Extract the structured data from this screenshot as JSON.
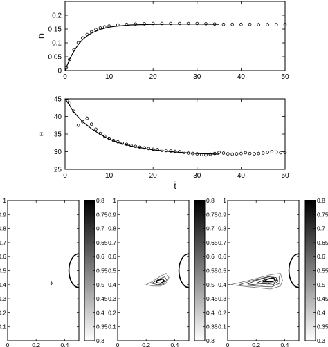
{
  "chart_data": [
    {
      "type": "line",
      "ylabel": "D",
      "xlim": [
        0,
        50
      ],
      "ylim": [
        0,
        0.25
      ],
      "xticks": [
        "0",
        "10",
        "20",
        "30",
        "40",
        "50"
      ],
      "yticks": [
        "0",
        "0.05",
        "0.1",
        "0.15",
        "0.2"
      ],
      "series": [
        {
          "style": "solid-line",
          "x": [
            0,
            1,
            2,
            3,
            4,
            5,
            6,
            8,
            10,
            12,
            15,
            20,
            25,
            30,
            35
          ],
          "y": [
            0,
            0.04,
            0.07,
            0.094,
            0.112,
            0.125,
            0.135,
            0.149,
            0.157,
            0.161,
            0.165,
            0.167,
            0.168,
            0.168,
            0.167
          ]
        },
        {
          "style": "circle-markers",
          "x": [
            0.3,
            1,
            2,
            3,
            4,
            5,
            6,
            7,
            8,
            9,
            10,
            12,
            14,
            16,
            18,
            20,
            22,
            24,
            26,
            28,
            30,
            32,
            34,
            36,
            38,
            40,
            42,
            44,
            46,
            48,
            50
          ],
          "y": [
            0.01,
            0.04,
            0.075,
            0.1,
            0.118,
            0.13,
            0.14,
            0.148,
            0.154,
            0.158,
            0.161,
            0.165,
            0.167,
            0.168,
            0.169,
            0.17,
            0.17,
            0.17,
            0.17,
            0.17,
            0.17,
            0.169,
            0.168,
            0.167,
            0.167,
            0.167,
            0.167,
            0.166,
            0.166,
            0.166,
            0.166
          ]
        }
      ]
    },
    {
      "type": "line",
      "xlabel": "t̂",
      "ylabel": "θ",
      "xlim": [
        0,
        50
      ],
      "ylim": [
        25,
        45
      ],
      "xticks": [
        "0",
        "10",
        "20",
        "30",
        "40",
        "50"
      ],
      "yticks": [
        "25",
        "30",
        "35",
        "40",
        "45"
      ],
      "series": [
        {
          "style": "solid-line",
          "x": [
            0,
            1,
            2,
            4,
            6,
            8,
            10,
            12,
            15,
            20,
            25,
            30,
            33,
            35
          ],
          "y": [
            45,
            43.2,
            41.2,
            38.5,
            36.5,
            34.9,
            33.6,
            32.6,
            31.6,
            30.5,
            29.9,
            29.5,
            29.4,
            29.3
          ]
        },
        {
          "style": "circle-markers",
          "x": [
            0.5,
            1,
            2,
            3,
            4,
            5,
            6,
            7,
            8,
            9,
            10,
            11,
            12,
            13,
            14,
            15,
            16,
            17,
            18,
            19,
            20,
            21,
            22,
            23,
            24,
            25,
            26,
            27,
            28,
            29,
            30,
            31,
            32,
            33,
            34,
            35,
            36,
            37,
            38,
            39,
            40,
            41,
            42,
            43,
            44,
            45,
            46,
            47,
            48,
            49,
            50
          ],
          "y": [
            44.5,
            43.8,
            41.5,
            37.5,
            38.5,
            39.5,
            37.8,
            36.4,
            35.2,
            34.4,
            33.8,
            33.2,
            32.8,
            32.4,
            32.1,
            31.8,
            31.5,
            31.3,
            31.1,
            30.9,
            30.7,
            30.6,
            30.4,
            30.3,
            30.2,
            30.1,
            30,
            29.8,
            29.6,
            29.5,
            29.4,
            29.2,
            29.1,
            29.3,
            29.5,
            29.8,
            29.6,
            29.4,
            29.3,
            29.4,
            29.5,
            29.7,
            29.5,
            29.4,
            29.5,
            29.6,
            29.8,
            30,
            29.9,
            29.7,
            29.8
          ]
        }
      ]
    },
    {
      "type": "contour",
      "xlim": [
        0,
        0.5
      ],
      "ylim": [
        0,
        1
      ],
      "xticks": [
        "0",
        "0.2",
        "0.4"
      ],
      "yticks": [
        "0",
        "0.1",
        "0.2",
        "0.3",
        "0.4",
        "0.5",
        "0.6",
        "0.7",
        "0.8",
        "0.9",
        "1"
      ],
      "colorbar": {
        "range": [
          0.3,
          0.8
        ],
        "ticks": [
          "0.8",
          "0.75",
          "0.7",
          "0.65",
          "0.6",
          "0.55",
          "0.5",
          "0.45",
          "0.4",
          "0.35",
          "0.3"
        ]
      },
      "contour_levels": [
        {
          "x": [
            0.307,
            0.313,
            0.307,
            0.301,
            0.307
          ],
          "y": [
            0.42,
            0.41,
            0.4,
            0.41,
            0.42
          ]
        }
      ]
    },
    {
      "type": "contour",
      "xlim": [
        0,
        0.5
      ],
      "ylim": [
        0,
        1
      ],
      "xticks": [
        "0",
        "0.2",
        "0.4"
      ],
      "yticks": [
        "0",
        "0.1",
        "0.2",
        "0.3",
        "0.4",
        "0.5",
        "0.6",
        "0.7",
        "0.8",
        "0.9",
        "1"
      ],
      "colorbar": {
        "range": [
          0.3,
          0.8
        ],
        "ticks": [
          "0.8",
          "0.75",
          "0.7",
          "0.65",
          "0.6",
          "0.55",
          "0.5",
          "0.45",
          "0.4",
          "0.35",
          "0.3"
        ]
      },
      "contour_levels": [
        {
          "x": [
            0.2,
            0.25,
            0.3,
            0.34,
            0.36,
            0.34,
            0.3,
            0.24,
            0.2
          ],
          "y": [
            0.4,
            0.39,
            0.39,
            0.41,
            0.45,
            0.48,
            0.46,
            0.42,
            0.4
          ]
        },
        {
          "x": [
            0.24,
            0.28,
            0.32,
            0.345,
            0.33,
            0.29,
            0.24
          ],
          "y": [
            0.41,
            0.4,
            0.405,
            0.43,
            0.455,
            0.44,
            0.41
          ]
        },
        {
          "x": [
            0.27,
            0.3,
            0.33,
            0.315,
            0.28,
            0.27
          ],
          "y": [
            0.415,
            0.41,
            0.425,
            0.44,
            0.43,
            0.415
          ]
        }
      ]
    },
    {
      "type": "contour",
      "xlim": [
        0,
        0.5
      ],
      "ylim": [
        0,
        1
      ],
      "xticks": [
        "0",
        "0.2",
        "0.4"
      ],
      "yticks": [
        "0",
        "0.1",
        "0.2",
        "0.3",
        "0.4",
        "0.5",
        "0.6",
        "0.7",
        "0.8",
        "0.9",
        "1"
      ],
      "colorbar": {
        "range": [
          0.3,
          0.8
        ],
        "ticks": [
          "0.8",
          "0.75",
          "0.7",
          "0.65",
          "0.6",
          "0.55",
          "0.5",
          "0.45",
          "0.4",
          "0.35",
          "0.3"
        ]
      },
      "contour_levels": [
        {
          "x": [
            0.02,
            0.15,
            0.3,
            0.37,
            0.385,
            0.37,
            0.3,
            0.15,
            0.02
          ],
          "y": [
            0.4,
            0.385,
            0.37,
            0.39,
            0.43,
            0.48,
            0.47,
            0.43,
            0.4
          ]
        },
        {
          "x": [
            0.08,
            0.2,
            0.31,
            0.365,
            0.36,
            0.3,
            0.18,
            0.08
          ],
          "y": [
            0.4,
            0.39,
            0.385,
            0.41,
            0.46,
            0.46,
            0.43,
            0.4
          ]
        },
        {
          "x": [
            0.14,
            0.24,
            0.32,
            0.355,
            0.34,
            0.29,
            0.2,
            0.14
          ],
          "y": [
            0.405,
            0.395,
            0.4,
            0.425,
            0.45,
            0.455,
            0.43,
            0.405
          ]
        },
        {
          "x": [
            0.2,
            0.28,
            0.33,
            0.345,
            0.32,
            0.27,
            0.2
          ],
          "y": [
            0.41,
            0.405,
            0.415,
            0.435,
            0.45,
            0.44,
            0.41
          ]
        },
        {
          "x": [
            0.25,
            0.31,
            0.335,
            0.32,
            0.28,
            0.25
          ],
          "y": [
            0.42,
            0.42,
            0.43,
            0.445,
            0.44,
            0.42
          ]
        }
      ]
    }
  ]
}
